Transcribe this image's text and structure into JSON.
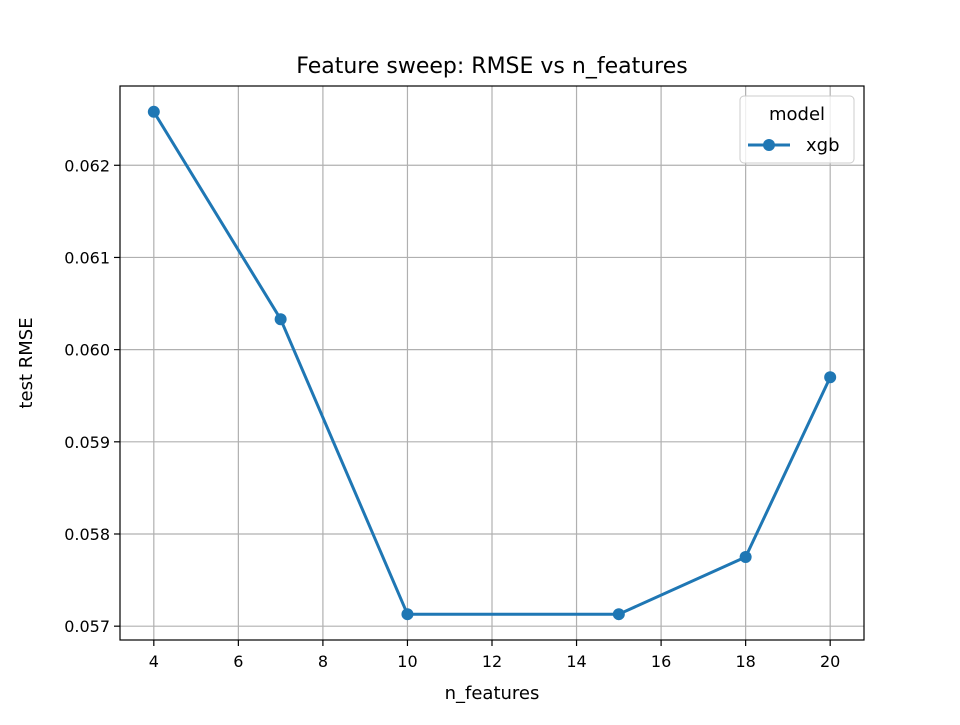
{
  "chart_data": {
    "type": "line",
    "title": "Feature sweep: RMSE vs n_features",
    "xlabel": "n_features",
    "ylabel": "test RMSE",
    "xlim": [
      3.2,
      20.8
    ],
    "ylim": [
      0.05685,
      0.06286
    ],
    "x_ticks": [
      4,
      6,
      8,
      10,
      12,
      14,
      16,
      18,
      20
    ],
    "x_tick_labels": [
      "4",
      "6",
      "8",
      "10",
      "12",
      "14",
      "16",
      "18",
      "20"
    ],
    "y_ticks": [
      0.057,
      0.058,
      0.059,
      0.06,
      0.061,
      0.062
    ],
    "y_tick_labels": [
      "0.057",
      "0.058",
      "0.059",
      "0.060",
      "0.061",
      "0.062"
    ],
    "grid": true,
    "legend": {
      "title": "model",
      "placement": "top-right",
      "entries": [
        "xgb"
      ]
    },
    "series": [
      {
        "name": "xgb",
        "color": "#1f77b4",
        "marker": "circle",
        "x": [
          4,
          7,
          10,
          15,
          18,
          20
        ],
        "y": [
          0.06258,
          0.06033,
          0.05713,
          0.05713,
          0.05775,
          0.0597
        ]
      }
    ]
  }
}
